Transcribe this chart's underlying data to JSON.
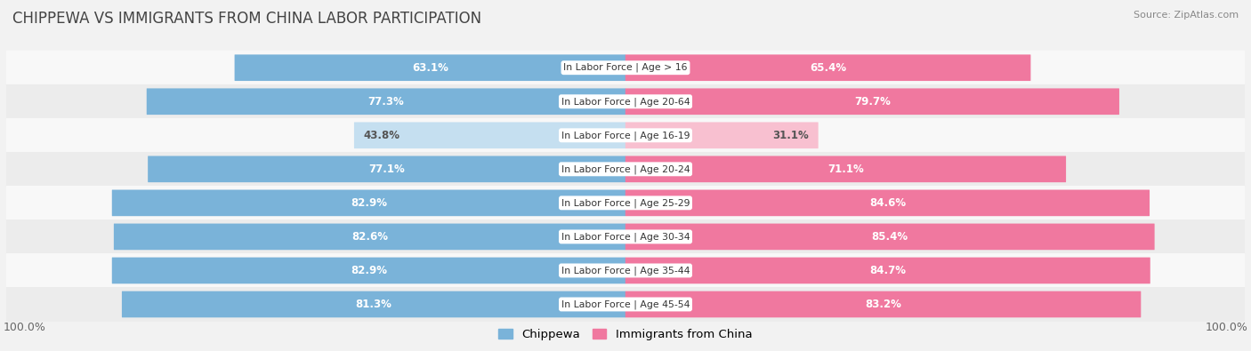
{
  "title": "CHIPPEWA VS IMMIGRANTS FROM CHINA LABOR PARTICIPATION",
  "source": "Source: ZipAtlas.com",
  "categories": [
    "In Labor Force | Age > 16",
    "In Labor Force | Age 20-64",
    "In Labor Force | Age 16-19",
    "In Labor Force | Age 20-24",
    "In Labor Force | Age 25-29",
    "In Labor Force | Age 30-34",
    "In Labor Force | Age 35-44",
    "In Labor Force | Age 45-54"
  ],
  "chippewa_values": [
    63.1,
    77.3,
    43.8,
    77.1,
    82.9,
    82.6,
    82.9,
    81.3
  ],
  "china_values": [
    65.4,
    79.7,
    31.1,
    71.1,
    84.6,
    85.4,
    84.7,
    83.2
  ],
  "chippewa_color": "#7ab3d9",
  "chippewa_color_light": "#c5dff0",
  "china_color": "#f0789f",
  "china_color_light": "#f8c0d0",
  "label_color_dark": "#555555",
  "label_color_white": "#ffffff",
  "background_color": "#f2f2f2",
  "row_bg_even": "#f8f8f8",
  "row_bg_odd": "#ececec",
  "max_value": 100.0,
  "bar_height": 0.72,
  "legend_chippewa": "Chippewa",
  "legend_china": "Immigrants from China",
  "title_fontsize": 12,
  "bar_fontsize": 8.5,
  "cat_fontsize": 7.8
}
